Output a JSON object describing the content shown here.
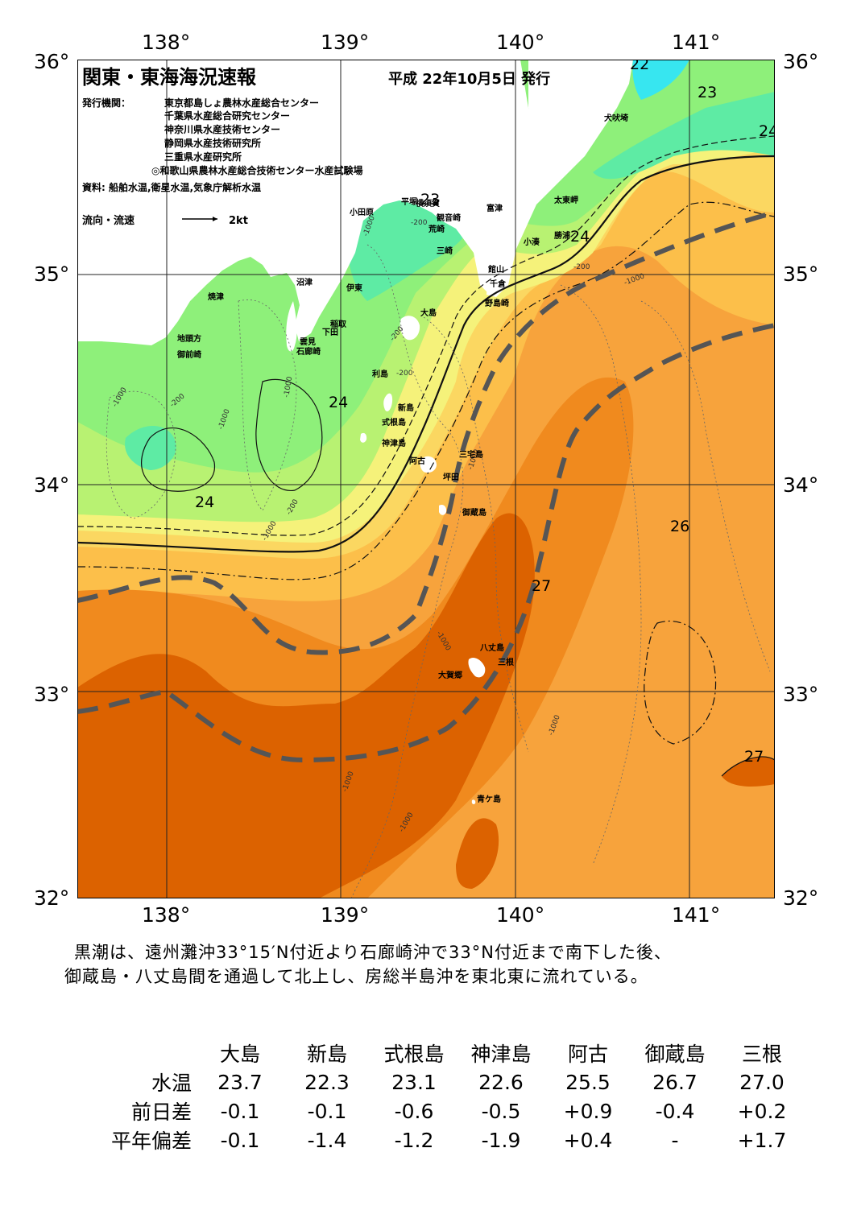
{
  "title": "関東・東海海況速報",
  "issue_date": "平成 22年10月5日 発行",
  "publishers_label": "発行機関：",
  "publishers": [
    "東京都島しょ農林水産総合センター",
    "千葉県水産総合研究センター",
    "神奈川県水産技術センター",
    "静岡県水産技術研究所",
    "三重県水産研究所",
    "◎和歌山県農林水産総合技術センター水産試験場"
  ],
  "sources": "資料: 船舶水温,衛星水温,気象庁解析水温",
  "flow_legend": {
    "label": "流向・流速",
    "scale": "2kt"
  },
  "axes": {
    "lon_ticks": [
      "138°",
      "139°",
      "140°",
      "141°"
    ],
    "lat_ticks": [
      "36°",
      "35°",
      "34°",
      "33°",
      "32°"
    ]
  },
  "colors": {
    "temp_22": "#37e6f0",
    "temp_23": "#5eeba4",
    "temp_23_5": "#8ef07a",
    "temp_24": "#b8f272",
    "temp_24_5": "#f5f27a",
    "temp_25": "#fbd761",
    "temp_25_5": "#fcbf4a",
    "temp_26": "#f7a33c",
    "temp_26_5": "#f08a1e",
    "temp_27": "#dc6200",
    "land": "#ffffff",
    "kuroshio_axis": "#555555"
  },
  "isotherm_labels": [
    {
      "label": "22"
    },
    {
      "label": "23"
    },
    {
      "label": "24"
    },
    {
      "label": "23"
    },
    {
      "label": "24"
    },
    {
      "label": "24"
    },
    {
      "label": "24"
    },
    {
      "label": "26"
    },
    {
      "label": "27"
    },
    {
      "label": "27"
    }
  ],
  "depth_labels": [
    "-1000",
    "-200"
  ],
  "place_names": [
    "犬吠埼",
    "太東岬",
    "勝浦",
    "小湊",
    "富津",
    "館山",
    "千倉",
    "野島崎",
    "観音崎",
    "横須賀",
    "平塚",
    "荒崎",
    "三崎",
    "小田原",
    "沼津",
    "伊東",
    "稲取",
    "下田",
    "雲見",
    "石廊崎",
    "焼津",
    "地頭方",
    "御前崎",
    "大島",
    "利島",
    "新島",
    "式根島",
    "神津島",
    "三宅島",
    "阿古",
    "坪田",
    "御蔵島",
    "八丈島",
    "三根",
    "大賀郷",
    "青ケ島"
  ],
  "summary": [
    "黒潮は、遠州灘沖33°15′N付近より石廊崎沖で33°N付近まで南下した後、",
    "御蔵島・八丈島間を通過して北上し、房総半島沖を東北東に流れている。"
  ],
  "stats": {
    "stations": [
      "大島",
      "新島",
      "式根島",
      "神津島",
      "阿古",
      "御蔵島",
      "三根"
    ],
    "rows": [
      {
        "label": "水温",
        "values": [
          "23.7",
          "22.3",
          "23.1",
          "22.6",
          "25.5",
          "26.7",
          "27.0"
        ]
      },
      {
        "label": "前日差",
        "values": [
          "-0.1",
          "-0.1",
          "-0.6",
          "-0.5",
          "+0.9",
          "-0.4",
          "+0.2"
        ]
      },
      {
        "label": "平年偏差",
        "values": [
          "-0.1",
          "-1.4",
          "-1.2",
          "-1.9",
          "+0.4",
          "-",
          "+1.7"
        ]
      }
    ]
  }
}
